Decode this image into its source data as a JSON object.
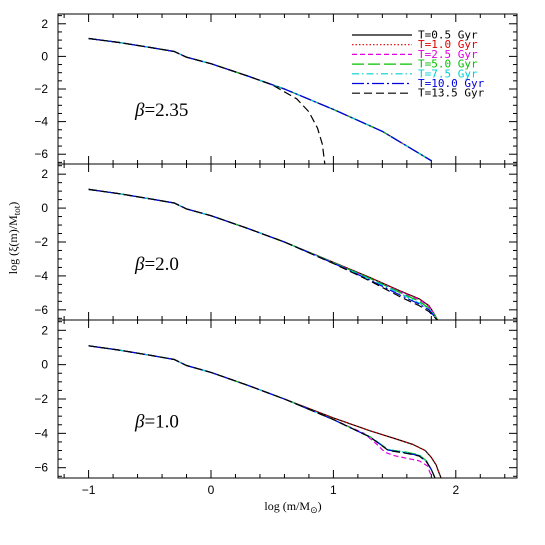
{
  "chart_data": {
    "type": "line",
    "xlabel": "log (m/M",
    "xlabel_sub": "⊙",
    "xlabel_tail": ")",
    "ylabel": "log (ξ(m)/M",
    "ylabel_sub": "tot",
    "ylabel_tail": ")",
    "xlim": [
      -1.25,
      2.5
    ],
    "ylim": [
      -6.6,
      2.6
    ],
    "x_ticks": [
      -1,
      0,
      1,
      2
    ],
    "y_ticks": [
      2,
      0,
      -2,
      -4,
      -6
    ],
    "x_tick_labels": [
      "−1",
      "0",
      "1",
      "2"
    ],
    "y_tick_labels": [
      "2",
      "0",
      "−2",
      "−4",
      "−6"
    ],
    "legend": {
      "placement": "top-right",
      "entries": [
        {
          "label": "T=0.5  Gyr",
          "color": "#000000",
          "dash": "solid"
        },
        {
          "label": "T=1.0  Gyr",
          "color": "#e00000",
          "dash": "dotted"
        },
        {
          "label": "T=2.5  Gyr",
          "color": "#e000e0",
          "dash": "short-dash"
        },
        {
          "label": "T=5.0  Gyr",
          "color": "#00c000",
          "dash": "long-dash"
        },
        {
          "label": "T=7.5  Gyr",
          "color": "#00d0d0",
          "dash": "dash-dot"
        },
        {
          "label": "T=10.0 Gyr",
          "color": "#0000e0",
          "dash": "long-dash-dot"
        },
        {
          "label": "T=13.5 Gyr",
          "color": "#000000",
          "dash": "dashed"
        }
      ]
    },
    "panels": [
      {
        "label_symbol": "β",
        "label_value": "=2.35",
        "series": [
          {
            "name": "T=0.5  Gyr",
            "x": [
              -1.0,
              -0.75,
              -0.5,
              -0.3,
              -0.2,
              0.0,
              0.3,
              0.6,
              1.0,
              1.4,
              1.8
            ],
            "y": [
              1.1,
              0.85,
              0.55,
              0.3,
              -0.05,
              -0.45,
              -1.2,
              -2.0,
              -3.25,
              -4.6,
              -6.4
            ]
          },
          {
            "name": "T=1.0  Gyr",
            "x": [
              -1.0,
              -0.75,
              -0.5,
              -0.3,
              -0.2,
              0.0,
              0.3,
              0.6,
              1.0,
              1.4,
              1.8
            ],
            "y": [
              1.1,
              0.85,
              0.55,
              0.3,
              -0.05,
              -0.45,
              -1.2,
              -2.0,
              -3.25,
              -4.6,
              -6.4
            ]
          },
          {
            "name": "T=2.5  Gyr",
            "x": [
              -1.0,
              -0.75,
              -0.5,
              -0.3,
              -0.2,
              0.0,
              0.3,
              0.6,
              1.0,
              1.4,
              1.8
            ],
            "y": [
              1.1,
              0.85,
              0.55,
              0.3,
              -0.05,
              -0.45,
              -1.2,
              -2.0,
              -3.25,
              -4.6,
              -6.4
            ]
          },
          {
            "name": "T=5.0  Gyr",
            "x": [
              -1.0,
              -0.75,
              -0.5,
              -0.3,
              -0.2,
              0.0,
              0.3,
              0.6,
              1.0,
              1.4,
              1.8
            ],
            "y": [
              1.1,
              0.85,
              0.55,
              0.3,
              -0.05,
              -0.45,
              -1.2,
              -2.0,
              -3.25,
              -4.6,
              -6.4
            ]
          },
          {
            "name": "T=7.5  Gyr",
            "x": [
              -1.0,
              -0.75,
              -0.5,
              -0.3,
              -0.2,
              0.0,
              0.3,
              0.6,
              1.0,
              1.4,
              1.8
            ],
            "y": [
              1.1,
              0.85,
              0.55,
              0.3,
              -0.05,
              -0.45,
              -1.2,
              -2.0,
              -3.25,
              -4.6,
              -6.4
            ]
          },
          {
            "name": "T=10.0 Gyr",
            "x": [
              -1.0,
              -0.75,
              -0.5,
              -0.3,
              -0.2,
              0.0,
              0.3,
              0.6,
              1.0,
              1.4,
              1.8
            ],
            "y": [
              1.1,
              0.85,
              0.55,
              0.3,
              -0.05,
              -0.45,
              -1.2,
              -2.0,
              -3.25,
              -4.6,
              -6.4
            ]
          },
          {
            "name": "T=13.5 Gyr",
            "x": [
              -1.0,
              -0.75,
              -0.5,
              -0.3,
              -0.2,
              0.0,
              0.3,
              0.5,
              0.7,
              0.8,
              0.87,
              0.91,
              0.93
            ],
            "y": [
              1.1,
              0.85,
              0.55,
              0.3,
              -0.05,
              -0.45,
              -1.2,
              -1.75,
              -2.6,
              -3.4,
              -4.4,
              -5.4,
              -6.6
            ]
          }
        ]
      },
      {
        "label_symbol": "β",
        "label_value": "=2.0",
        "series": [
          {
            "name": "T=0.5  Gyr",
            "x": [
              -1.0,
              -0.75,
              -0.5,
              -0.3,
              -0.2,
              0.0,
              0.3,
              0.6,
              1.0,
              1.3,
              1.55,
              1.7,
              1.78,
              1.82,
              1.85
            ],
            "y": [
              1.1,
              0.85,
              0.55,
              0.3,
              -0.05,
              -0.45,
              -1.2,
              -2.0,
              -3.2,
              -4.1,
              -4.9,
              -5.35,
              -5.75,
              -6.2,
              -6.6
            ]
          },
          {
            "name": "T=1.0  Gyr",
            "x": [
              -1.0,
              -0.75,
              -0.5,
              -0.3,
              -0.2,
              0.0,
              0.3,
              0.6,
              1.0,
              1.3,
              1.55,
              1.7,
              1.78,
              1.82,
              1.85
            ],
            "y": [
              1.1,
              0.85,
              0.55,
              0.3,
              -0.05,
              -0.45,
              -1.2,
              -2.0,
              -3.2,
              -4.1,
              -4.9,
              -5.35,
              -5.75,
              -6.2,
              -6.6
            ]
          },
          {
            "name": "T=2.5  Gyr",
            "x": [
              -1.0,
              -0.75,
              -0.5,
              -0.3,
              -0.2,
              0.0,
              0.3,
              0.6,
              1.0,
              1.3,
              1.55,
              1.7,
              1.78,
              1.82,
              1.85
            ],
            "y": [
              1.1,
              0.85,
              0.55,
              0.3,
              -0.05,
              -0.45,
              -1.2,
              -2.0,
              -3.22,
              -4.15,
              -4.95,
              -5.4,
              -5.8,
              -6.2,
              -6.6
            ]
          },
          {
            "name": "T=5.0  Gyr",
            "x": [
              -1.0,
              -0.75,
              -0.5,
              -0.3,
              -0.2,
              0.0,
              0.3,
              0.6,
              1.0,
              1.3,
              1.55,
              1.7,
              1.78,
              1.82,
              1.85
            ],
            "y": [
              1.1,
              0.85,
              0.55,
              0.3,
              -0.05,
              -0.45,
              -1.2,
              -2.0,
              -3.22,
              -4.15,
              -5.0,
              -5.5,
              -5.9,
              -6.25,
              -6.6
            ]
          },
          {
            "name": "T=7.5  Gyr",
            "x": [
              -1.0,
              -0.75,
              -0.5,
              -0.3,
              -0.2,
              0.0,
              0.3,
              0.6,
              1.0,
              1.3,
              1.55,
              1.7,
              1.78,
              1.82,
              1.85
            ],
            "y": [
              1.1,
              0.85,
              0.55,
              0.3,
              -0.05,
              -0.45,
              -1.2,
              -2.0,
              -3.24,
              -4.2,
              -5.05,
              -5.6,
              -5.95,
              -6.3,
              -6.6
            ]
          },
          {
            "name": "T=10.0 Gyr",
            "x": [
              -1.0,
              -0.75,
              -0.5,
              -0.3,
              -0.2,
              0.0,
              0.3,
              0.6,
              1.0,
              1.3,
              1.55,
              1.7,
              1.78,
              1.82,
              1.85
            ],
            "y": [
              1.1,
              0.85,
              0.55,
              0.3,
              -0.05,
              -0.45,
              -1.2,
              -2.0,
              -3.25,
              -4.25,
              -5.15,
              -5.65,
              -6.0,
              -6.35,
              -6.6
            ]
          },
          {
            "name": "T=13.5 Gyr",
            "x": [
              -1.0,
              -0.75,
              -0.5,
              -0.3,
              -0.2,
              0.0,
              0.3,
              0.6,
              1.0,
              1.3,
              1.55,
              1.7,
              1.78,
              1.82,
              1.85
            ],
            "y": [
              1.1,
              0.85,
              0.55,
              0.3,
              -0.05,
              -0.45,
              -1.2,
              -2.0,
              -3.27,
              -4.3,
              -5.25,
              -5.75,
              -6.1,
              -6.4,
              -6.6
            ]
          }
        ]
      },
      {
        "label_symbol": "β",
        "label_value": "=1.0",
        "series": [
          {
            "name": "T=0.5  Gyr",
            "x": [
              -1.0,
              -0.75,
              -0.5,
              -0.3,
              -0.2,
              0.0,
              0.3,
              0.6,
              1.0,
              1.3,
              1.5,
              1.65,
              1.75,
              1.8,
              1.84,
              1.86,
              1.88
            ],
            "y": [
              1.1,
              0.85,
              0.55,
              0.3,
              -0.05,
              -0.45,
              -1.2,
              -2.0,
              -3.1,
              -3.85,
              -4.3,
              -4.65,
              -5.0,
              -5.4,
              -5.85,
              -6.25,
              -6.6
            ]
          },
          {
            "name": "T=1.0  Gyr",
            "x": [
              -1.0,
              -0.75,
              -0.5,
              -0.3,
              -0.2,
              0.0,
              0.3,
              0.6,
              1.0,
              1.3,
              1.5,
              1.65,
              1.75,
              1.8,
              1.84,
              1.86,
              1.88
            ],
            "y": [
              1.1,
              0.85,
              0.55,
              0.3,
              -0.05,
              -0.45,
              -1.2,
              -2.0,
              -3.1,
              -3.85,
              -4.3,
              -4.65,
              -5.0,
              -5.4,
              -5.85,
              -6.25,
              -6.6
            ]
          },
          {
            "name": "T=2.5  Gyr",
            "x": [
              -1.0,
              -0.75,
              -0.5,
              -0.3,
              -0.2,
              0.0,
              0.3,
              0.6,
              1.0,
              1.25,
              1.35,
              1.42,
              1.5,
              1.6,
              1.7,
              1.77,
              1.8
            ],
            "y": [
              1.1,
              0.85,
              0.55,
              0.3,
              -0.05,
              -0.45,
              -1.2,
              -2.0,
              -3.2,
              -4.0,
              -4.6,
              -5.1,
              -5.3,
              -5.45,
              -5.6,
              -5.9,
              -6.5
            ]
          },
          {
            "name": "T=5.0  Gyr",
            "x": [
              -1.0,
              -0.75,
              -0.5,
              -0.3,
              -0.2,
              0.0,
              0.3,
              0.6,
              1.0,
              1.3,
              1.45,
              1.6,
              1.7,
              1.76,
              1.8,
              1.83
            ],
            "y": [
              1.1,
              0.85,
              0.55,
              0.3,
              -0.05,
              -0.45,
              -1.2,
              -2.0,
              -3.2,
              -4.2,
              -4.95,
              -5.1,
              -5.25,
              -5.6,
              -6.1,
              -6.6
            ]
          },
          {
            "name": "T=7.5  Gyr",
            "x": [
              -1.0,
              -0.75,
              -0.5,
              -0.3,
              -0.2,
              0.0,
              0.3,
              0.6,
              1.0,
              1.3,
              1.45,
              1.6,
              1.7,
              1.76,
              1.8,
              1.83
            ],
            "y": [
              1.1,
              0.85,
              0.55,
              0.3,
              -0.05,
              -0.45,
              -1.2,
              -2.0,
              -3.2,
              -4.2,
              -4.95,
              -5.12,
              -5.28,
              -5.62,
              -6.1,
              -6.6
            ]
          },
          {
            "name": "T=10.0 Gyr",
            "x": [
              -1.0,
              -0.75,
              -0.5,
              -0.3,
              -0.2,
              0.0,
              0.3,
              0.6,
              1.0,
              1.3,
              1.45,
              1.6,
              1.7,
              1.76,
              1.8,
              1.83
            ],
            "y": [
              1.1,
              0.85,
              0.55,
              0.3,
              -0.05,
              -0.45,
              -1.2,
              -2.0,
              -3.2,
              -4.22,
              -4.98,
              -5.15,
              -5.3,
              -5.65,
              -6.1,
              -6.6
            ]
          },
          {
            "name": "T=13.5 Gyr",
            "x": [
              -1.0,
              -0.75,
              -0.5,
              -0.3,
              -0.2,
              0.0,
              0.3,
              0.6,
              1.0,
              1.3,
              1.45,
              1.6,
              1.7,
              1.76,
              1.8,
              1.83
            ],
            "y": [
              1.1,
              0.85,
              0.55,
              0.3,
              -0.05,
              -0.45,
              -1.2,
              -2.0,
              -3.2,
              -4.22,
              -5.0,
              -5.17,
              -5.32,
              -5.65,
              -6.1,
              -6.6
            ]
          }
        ]
      }
    ]
  }
}
